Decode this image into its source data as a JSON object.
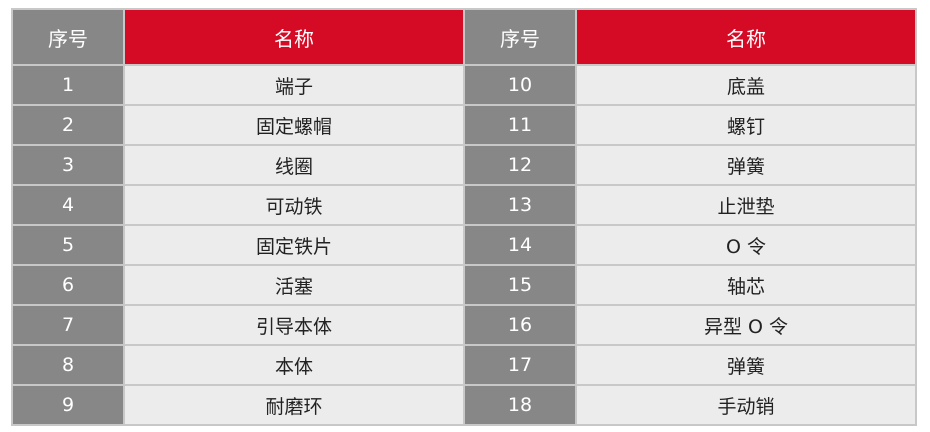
{
  "header": {
    "num_label": "序号",
    "name_label": "名称"
  },
  "colors": {
    "header_red": "#d50a25",
    "number_gray": "#878787",
    "cell_light": "#ececec"
  },
  "rows": [
    [
      {
        "num": "1",
        "name": "端子"
      },
      {
        "num": "10",
        "name": "底盖"
      }
    ],
    [
      {
        "num": "2",
        "name": "固定螺帽"
      },
      {
        "num": "11",
        "name": "螺钉"
      }
    ],
    [
      {
        "num": "3",
        "name": "线圈"
      },
      {
        "num": "12",
        "name": "弹簧"
      }
    ],
    [
      {
        "num": "4",
        "name": "可动铁"
      },
      {
        "num": "13",
        "name": "止泄垫"
      }
    ],
    [
      {
        "num": "5",
        "name": "固定铁片"
      },
      {
        "num": "14",
        "name": "O 令"
      }
    ],
    [
      {
        "num": "6",
        "name": "活塞"
      },
      {
        "num": "15",
        "name": "轴芯"
      }
    ],
    [
      {
        "num": "7",
        "name": "引导本体"
      },
      {
        "num": "16",
        "name": "异型 O 令"
      }
    ],
    [
      {
        "num": "8",
        "name": "本体"
      },
      {
        "num": "17",
        "name": "弹簧"
      }
    ],
    [
      {
        "num": "9",
        "name": "耐磨环"
      },
      {
        "num": "18",
        "name": "手动销"
      }
    ]
  ]
}
